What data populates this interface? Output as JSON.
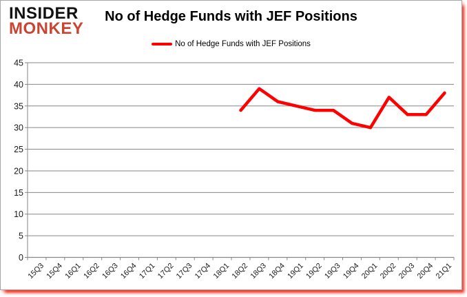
{
  "brand": {
    "line1": "INSIDER",
    "line2": "MONKEY",
    "monkey_color": "#cb4432",
    "insider_color": "#111111"
  },
  "header": {
    "title": "No of Hedge Funds with JEF Positions"
  },
  "legend": {
    "label": "No of Hedge Funds with JEF Positions",
    "color": "#ff0000"
  },
  "chart_data": {
    "type": "line",
    "title": "No of Hedge Funds with JEF Positions",
    "categories": [
      "15Q3",
      "15Q4",
      "16Q1",
      "16Q2",
      "16Q3",
      "16Q4",
      "17Q1",
      "17Q2",
      "17Q3",
      "17Q4",
      "18Q1",
      "18Q2",
      "18Q3",
      "18Q4",
      "19Q1",
      "19Q2",
      "19Q3",
      "19Q4",
      "20Q1",
      "20Q2",
      "20Q3",
      "20Q4",
      "21Q1"
    ],
    "series": [
      {
        "name": "No of Hedge Funds with JEF Positions",
        "color": "#ff0000",
        "values": [
          null,
          null,
          null,
          null,
          null,
          null,
          null,
          null,
          null,
          null,
          null,
          34,
          39,
          36,
          35,
          34,
          34,
          31,
          30,
          37,
          33,
          33,
          38
        ]
      }
    ],
    "xlabel": "",
    "ylabel": "",
    "ylim": [
      0,
      45
    ],
    "ytick_step": 5,
    "yticks": [
      0,
      5,
      10,
      15,
      20,
      25,
      30,
      35,
      40,
      45
    ],
    "grid": true,
    "legend_position": "top",
    "gridline_color": "#868686",
    "axis_color": "#868686",
    "label_color": "#1a1a1a"
  }
}
